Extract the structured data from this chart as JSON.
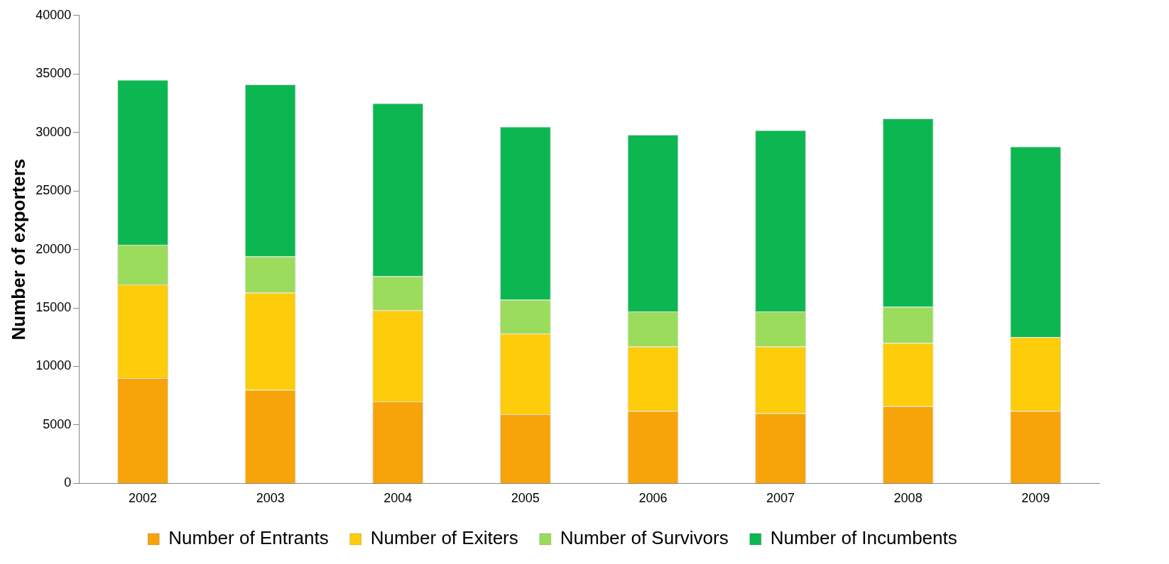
{
  "chart_data": {
    "type": "bar",
    "ylabel": "Number of exporters",
    "categories": [
      "2002",
      "2003",
      "2004",
      "2005",
      "2006",
      "2007",
      "2008",
      "2009"
    ],
    "stacked": true,
    "series": [
      {
        "name": "Number of Entrants",
        "color": "#f7a30a",
        "values": [
          9000,
          8000,
          7000,
          5900,
          6200,
          6000,
          6600,
          6200
        ]
      },
      {
        "name": "Number of Exiters",
        "color": "#fdcc0a",
        "values": [
          8000,
          8300,
          7800,
          6900,
          5500,
          5700,
          5400,
          6300
        ]
      },
      {
        "name": "Number of Survivors",
        "color": "#9bdc5c",
        "values": [
          3400,
          3100,
          2900,
          2900,
          3000,
          3000,
          3100,
          0
        ]
      },
      {
        "name": "Number of Incumbents",
        "color": "#0cb752",
        "values": [
          14100,
          14700,
          14800,
          14800,
          15100,
          15500,
          16100,
          16300
        ]
      }
    ],
    "ylim": [
      0,
      40000
    ],
    "yticks": [
      0,
      5000,
      10000,
      15000,
      20000,
      25000,
      30000,
      35000,
      40000
    ],
    "grid": false,
    "legend": "bottom"
  }
}
